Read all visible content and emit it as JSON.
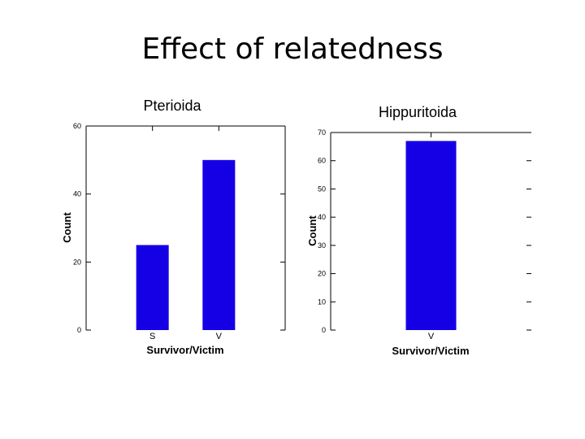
{
  "slide": {
    "title": "Effect of relatedness"
  },
  "chart_data": [
    {
      "type": "bar",
      "title": "Pterioida",
      "xlabel": "Survivor/Victim",
      "ylabel": "Count",
      "categories": [
        "S",
        "V"
      ],
      "values": [
        25,
        50
      ],
      "ylim": [
        0,
        60
      ],
      "yticks": [
        0,
        20,
        40,
        60
      ],
      "grid": false,
      "bar_color": "#1500e6"
    },
    {
      "type": "bar",
      "title": "Hippuritoida",
      "xlabel": "Survivor/Victim",
      "ylabel": "Count",
      "categories": [
        "V"
      ],
      "values": [
        67
      ],
      "ylim": [
        0,
        70
      ],
      "yticks": [
        0,
        10,
        20,
        30,
        40,
        50,
        60,
        70
      ],
      "grid": false,
      "bar_color": "#1500e6"
    }
  ]
}
